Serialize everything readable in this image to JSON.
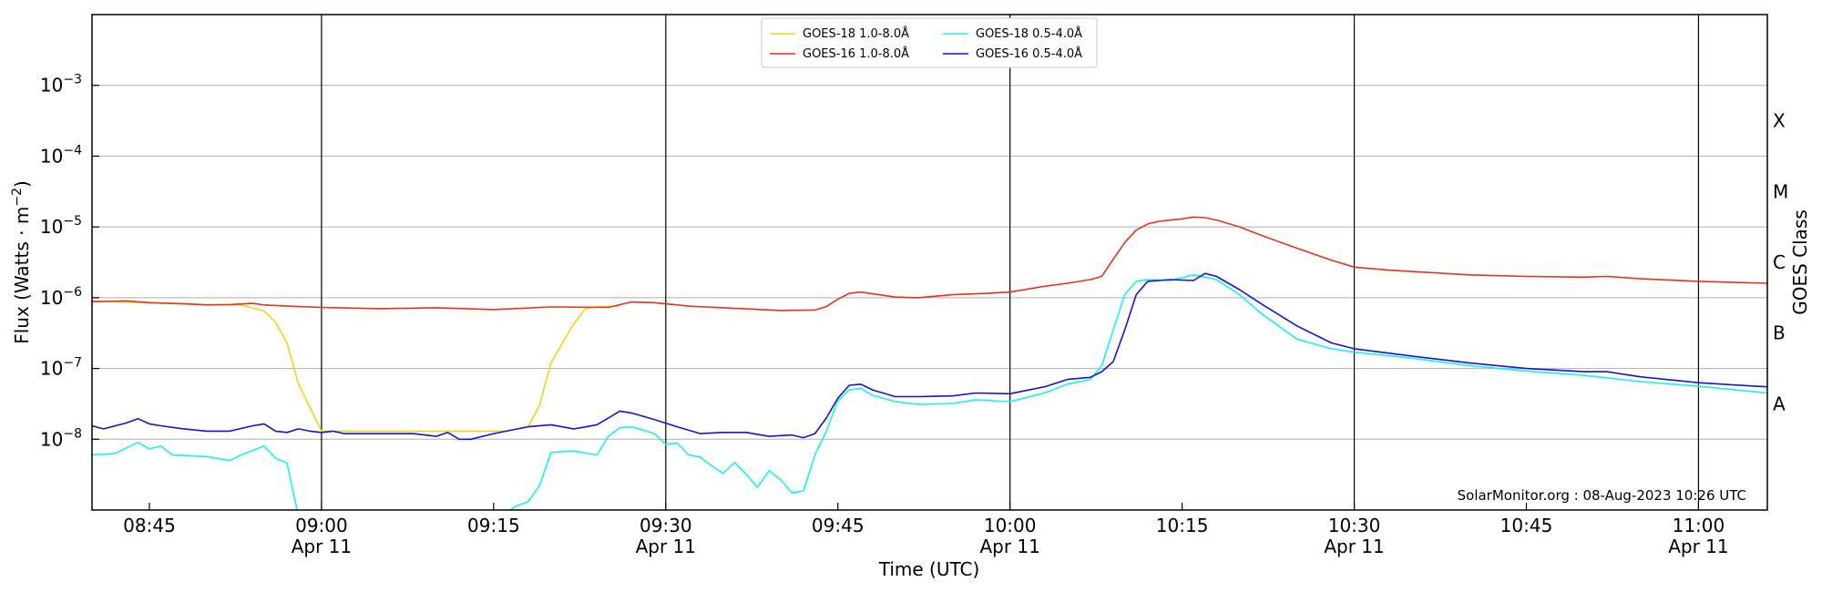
{
  "chart_data": {
    "type": "line",
    "xlabel": "Time (UTC)",
    "ylabel_main": "Flux (Watts · m",
    "ylabel_sup": "−2",
    "ylabel_close": ")",
    "right_axis_label": "GOES Class",
    "credit": "SolarMonitor.org : 08-Aug-2023 10:26 UTC",
    "y_scale": "log",
    "ylim": [
      1e-09,
      0.01
    ],
    "xlim": [
      "08:40",
      "11:06"
    ],
    "grid": "horizontal at decades",
    "legend_position": "top-center",
    "x_ticks": [
      {
        "time": "08:45",
        "label": "08:45",
        "date": ""
      },
      {
        "time": "09:00",
        "label": "09:00",
        "date": "Apr 11"
      },
      {
        "time": "09:15",
        "label": "09:15",
        "date": ""
      },
      {
        "time": "09:30",
        "label": "09:30",
        "date": "Apr 11"
      },
      {
        "time": "09:45",
        "label": "09:45",
        "date": ""
      },
      {
        "time": "10:00",
        "label": "10:00",
        "date": "Apr 11"
      },
      {
        "time": "10:15",
        "label": "10:15",
        "date": ""
      },
      {
        "time": "10:30",
        "label": "10:30",
        "date": "Apr 11"
      },
      {
        "time": "10:45",
        "label": "10:45",
        "date": ""
      },
      {
        "time": "11:00",
        "label": "11:00",
        "date": "Apr 11"
      }
    ],
    "y_ticks": [
      {
        "value": 1e-08,
        "exp": "−8"
      },
      {
        "value": 1e-07,
        "exp": "−7"
      },
      {
        "value": 1e-06,
        "exp": "−6"
      },
      {
        "value": 1e-05,
        "exp": "−5"
      },
      {
        "value": 0.0001,
        "exp": "−4"
      },
      {
        "value": 0.001,
        "exp": "−3"
      }
    ],
    "vertical_lines": [
      "09:00",
      "09:30",
      "10:00",
      "10:30",
      "11:00"
    ],
    "goes_classes": [
      {
        "label": "A",
        "value": 3.16e-08
      },
      {
        "label": "B",
        "value": 3.16e-07
      },
      {
        "label": "C",
        "value": 3.16e-06
      },
      {
        "label": "M",
        "value": 3.16e-05
      },
      {
        "label": "X",
        "value": 0.000316
      }
    ],
    "series": [
      {
        "name": "GOES-18 1.0-8.0Å",
        "color": "#f5d31b",
        "x": [
          "08:40",
          "08:45",
          "08:50",
          "08:53",
          "08:55",
          "08:56",
          "08:57",
          "08:58",
          "08:59",
          "09:00",
          "09:01",
          "09:13",
          "09:16",
          "09:18",
          "09:19",
          "09:20",
          "09:21",
          "09:22",
          "09:23",
          "09:24",
          "09:26"
        ],
        "y": [
          9e-07,
          8.5e-07,
          8e-07,
          7.9e-07,
          6.5e-07,
          4.5e-07,
          2.3e-07,
          6e-08,
          2.8e-08,
          1.3e-08,
          1.3e-08,
          1.3e-08,
          1.3e-08,
          1.5e-08,
          3e-08,
          1.2e-07,
          2.3e-07,
          4.3e-07,
          7e-07,
          7.4e-07,
          7.6e-07
        ]
      },
      {
        "name": "GOES-16 1.0-8.0Å",
        "color": "#e8331a",
        "x": [
          "08:40",
          "08:43",
          "08:45",
          "08:48",
          "08:50",
          "08:52",
          "08:54",
          "08:55",
          "08:57",
          "09:00",
          "09:05",
          "09:10",
          "09:15",
          "09:20",
          "09:25",
          "09:27",
          "09:29",
          "09:32",
          "09:35",
          "09:40",
          "09:43",
          "09:44",
          "09:45",
          "09:46",
          "09:47",
          "09:50",
          "09:52",
          "09:55",
          "09:58",
          "10:00",
          "10:03",
          "10:05",
          "10:07",
          "10:08",
          "10:09",
          "10:10",
          "10:11",
          "10:12",
          "10:13",
          "10:14",
          "10:15",
          "10:16",
          "10:17",
          "10:18",
          "10:20",
          "10:22",
          "10:25",
          "10:28",
          "10:30",
          "10:33",
          "10:40",
          "10:45",
          "10:50",
          "10:52",
          "10:55",
          "11:00",
          "11:06"
        ],
        "y": [
          8.8e-07,
          9e-07,
          8.5e-07,
          8.2e-07,
          7.9e-07,
          8e-07,
          8.3e-07,
          7.9e-07,
          7.6e-07,
          7.3e-07,
          7e-07,
          7.2e-07,
          6.8e-07,
          7.4e-07,
          7.3e-07,
          8.7e-07,
          8.5e-07,
          7.6e-07,
          7.2e-07,
          6.6e-07,
          6.7e-07,
          7.5e-07,
          9.5e-07,
          1.15e-06,
          1.2e-06,
          1.02e-06,
          1e-06,
          1.1e-06,
          1.15e-06,
          1.2e-06,
          1.45e-06,
          1.6e-06,
          1.8e-06,
          2e-06,
          3.5e-06,
          6e-06,
          9e-06,
          1.1e-05,
          1.2e-05,
          1.25e-05,
          1.3e-05,
          1.38e-05,
          1.35e-05,
          1.25e-05,
          1e-05,
          7.5e-06,
          5e-06,
          3.4e-06,
          2.7e-06,
          2.45e-06,
          2.1e-06,
          2e-06,
          1.95e-06,
          2e-06,
          1.85e-06,
          1.7e-06,
          1.6e-06
        ]
      },
      {
        "name": "GOES-18 0.5-4.0Å",
        "color": "#19f1f1",
        "x": [
          "08:40",
          "08:42",
          "08:44",
          "08:45",
          "08:46",
          "08:47",
          "08:48",
          "08:50",
          "08:52",
          "08:53",
          "08:55",
          "08:56",
          "08:57",
          "08:58",
          "09:14",
          "09:16",
          "09:17",
          "09:18",
          "09:19",
          "09:20",
          "09:21",
          "09:22",
          "09:24",
          "09:25",
          "09:26",
          "09:27",
          "09:28",
          "09:29",
          "09:30",
          "09:31",
          "09:32",
          "09:33",
          "09:34",
          "09:35",
          "09:36",
          "09:37",
          "09:38",
          "09:39",
          "09:40",
          "09:41",
          "09:42",
          "09:43",
          "09:44",
          "09:45",
          "09:46",
          "09:47",
          "09:48",
          "09:50",
          "09:52",
          "09:55",
          "09:57",
          "10:00",
          "10:03",
          "10:05",
          "10:07",
          "10:08",
          "10:09",
          "10:10",
          "10:11",
          "10:12",
          "10:14",
          "10:16",
          "10:18",
          "10:20",
          "10:22",
          "10:25",
          "10:28",
          "10:30",
          "10:35",
          "10:40",
          "10:45",
          "10:50",
          "10:55",
          "11:00",
          "11:06"
        ],
        "y": [
          6e-09,
          6.3e-09,
          9e-09,
          7.3e-09,
          8e-09,
          6e-09,
          5.9e-09,
          5.7e-09,
          5e-09,
          6e-09,
          8e-09,
          5.4e-09,
          4.6e-09,
          8e-10,
          8e-10,
          9e-10,
          1.15e-09,
          1.3e-09,
          2.2e-09,
          6.5e-09,
          6.7e-09,
          6.8e-09,
          6e-09,
          1.1e-08,
          1.45e-08,
          1.5e-08,
          1.35e-08,
          1.2e-08,
          8.5e-09,
          8.8e-09,
          6e-09,
          5.6e-09,
          4.2e-09,
          3.3e-09,
          4.7e-09,
          3.2e-09,
          2.1e-09,
          3.6e-09,
          2.7e-09,
          1.75e-09,
          1.85e-09,
          6e-09,
          1.3e-08,
          3.5e-08,
          5e-08,
          5.2e-08,
          4.2e-08,
          3.4e-08,
          3.1e-08,
          3.2e-08,
          3.6e-08,
          3.4e-08,
          4.5e-08,
          6e-08,
          7e-08,
          1.1e-07,
          3.5e-07,
          1.1e-06,
          1.7e-06,
          1.8e-06,
          1.75e-06,
          2.1e-06,
          1.8e-06,
          1.1e-06,
          5.8e-07,
          2.6e-07,
          1.9e-07,
          1.7e-07,
          1.4e-07,
          1.1e-07,
          9.2e-08,
          8e-08,
          6.5e-08,
          5.6e-08,
          4.5e-08
        ]
      },
      {
        "name": "GOES-16 0.5-4.0Å",
        "color": "#1414d6",
        "x": [
          "08:40",
          "08:41",
          "08:43",
          "08:44",
          "08:45",
          "08:46",
          "08:48",
          "08:50",
          "08:52",
          "08:54",
          "08:55",
          "08:56",
          "08:57",
          "08:58",
          "08:59",
          "09:00",
          "09:01",
          "09:02",
          "09:05",
          "09:08",
          "09:10",
          "09:11",
          "09:12",
          "09:13",
          "09:15",
          "09:18",
          "09:20",
          "09:22",
          "09:24",
          "09:26",
          "09:27",
          "09:29",
          "09:31",
          "09:33",
          "09:35",
          "09:37",
          "09:39",
          "09:41",
          "09:42",
          "09:43",
          "09:44",
          "09:45",
          "09:46",
          "09:47",
          "09:48",
          "09:50",
          "09:52",
          "09:55",
          "09:57",
          "10:00",
          "10:03",
          "10:05",
          "10:07",
          "10:08",
          "10:09",
          "10:10",
          "10:11",
          "10:12",
          "10:14",
          "10:16",
          "10:17",
          "10:18",
          "10:20",
          "10:22",
          "10:25",
          "10:28",
          "10:30",
          "10:35",
          "10:40",
          "10:45",
          "10:50",
          "10:52",
          "10:55",
          "11:00",
          "11:05",
          "11:06"
        ],
        "y": [
          1.55e-08,
          1.4e-08,
          1.7e-08,
          1.95e-08,
          1.65e-08,
          1.55e-08,
          1.4e-08,
          1.3e-08,
          1.3e-08,
          1.55e-08,
          1.65e-08,
          1.3e-08,
          1.25e-08,
          1.4e-08,
          1.3e-08,
          1.25e-08,
          1.3e-08,
          1.2e-08,
          1.2e-08,
          1.2e-08,
          1.1e-08,
          1.25e-08,
          1e-08,
          1e-08,
          1.2e-08,
          1.5e-08,
          1.6e-08,
          1.4e-08,
          1.6e-08,
          2.5e-08,
          2.35e-08,
          1.9e-08,
          1.5e-08,
          1.2e-08,
          1.25e-08,
          1.25e-08,
          1.1e-08,
          1.15e-08,
          1.05e-08,
          1.2e-08,
          2e-08,
          3.8e-08,
          5.8e-08,
          6e-08,
          5e-08,
          4e-08,
          4e-08,
          4.1e-08,
          4.5e-08,
          4.4e-08,
          5.5e-08,
          7e-08,
          7.5e-08,
          9e-08,
          1.25e-07,
          3.5e-07,
          1.1e-06,
          1.7e-06,
          1.8e-06,
          1.75e-06,
          2.2e-06,
          2e-06,
          1.3e-06,
          8e-07,
          4e-07,
          2.3e-07,
          1.9e-07,
          1.5e-07,
          1.2e-07,
          1e-07,
          9e-08,
          9e-08,
          7.6e-08,
          6.3e-08,
          5.6e-08,
          5.5e-08
        ]
      }
    ]
  }
}
